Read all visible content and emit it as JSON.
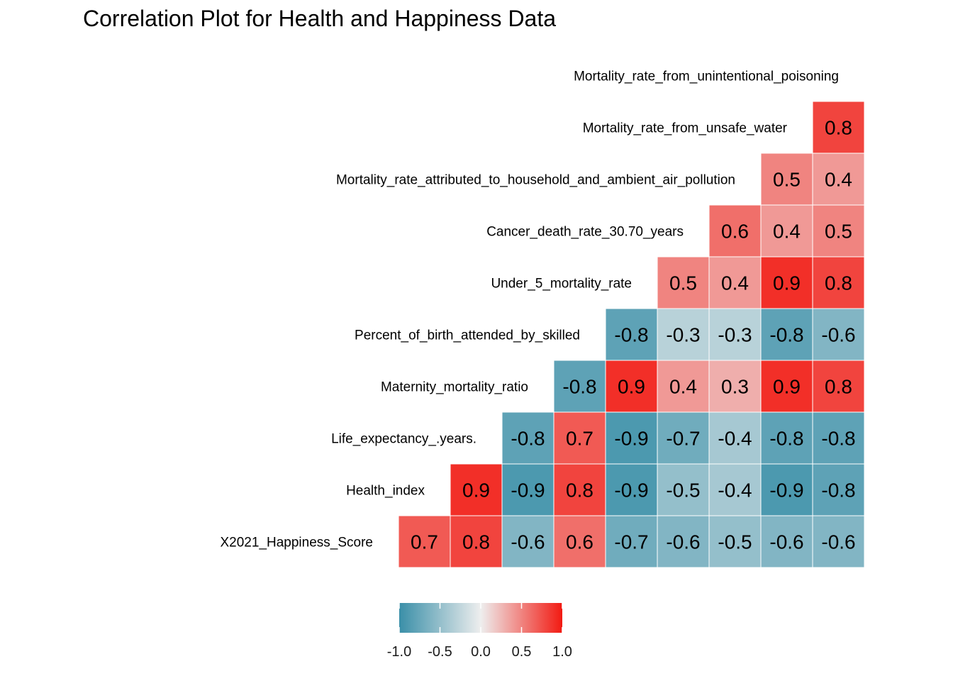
{
  "chart_data": {
    "type": "heatmap",
    "title": "Correlation Plot for Health and Happiness Data",
    "variables": [
      "X2021_Happiness_Score",
      "Health_index",
      "Life_expectancy_.years.",
      "Maternity_mortality_ratio",
      "Percent_of_birth_attended_by_skilled",
      "Under_5_mortality_rate",
      "Cancer_death_rate_30.70_years",
      "Mortality_rate_attributed_to_household_and_ambient_air_pollution",
      "Mortality_rate_from_unsafe_water",
      "Mortality_rate_from_unintentional_poisoning"
    ],
    "correlations": [
      [
        0.7,
        0.8,
        -0.6,
        0.6,
        -0.7,
        -0.6,
        -0.5,
        -0.6,
        -0.6
      ],
      [
        0.9,
        -0.9,
        0.8,
        -0.9,
        -0.5,
        -0.4,
        -0.9,
        -0.8
      ],
      [
        -0.8,
        0.7,
        -0.9,
        -0.7,
        -0.4,
        -0.8,
        -0.8
      ],
      [
        -0.8,
        0.9,
        0.4,
        0.3,
        0.9,
        0.8
      ],
      [
        -0.8,
        -0.3,
        -0.3,
        -0.8,
        -0.6
      ],
      [
        0.5,
        0.4,
        0.9,
        0.8
      ],
      [
        0.6,
        0.4,
        0.5
      ],
      [
        0.5,
        0.4
      ],
      [
        0.8
      ]
    ],
    "legend": {
      "ticks": [
        "-1.0",
        "-0.5",
        "0.0",
        "0.5",
        "1.0"
      ],
      "range": [
        -1,
        1
      ],
      "placement": "bottom"
    },
    "colors": {
      "low": "#3A8FA8",
      "mid": "#EEEEEE",
      "high": "#F21A12"
    }
  }
}
